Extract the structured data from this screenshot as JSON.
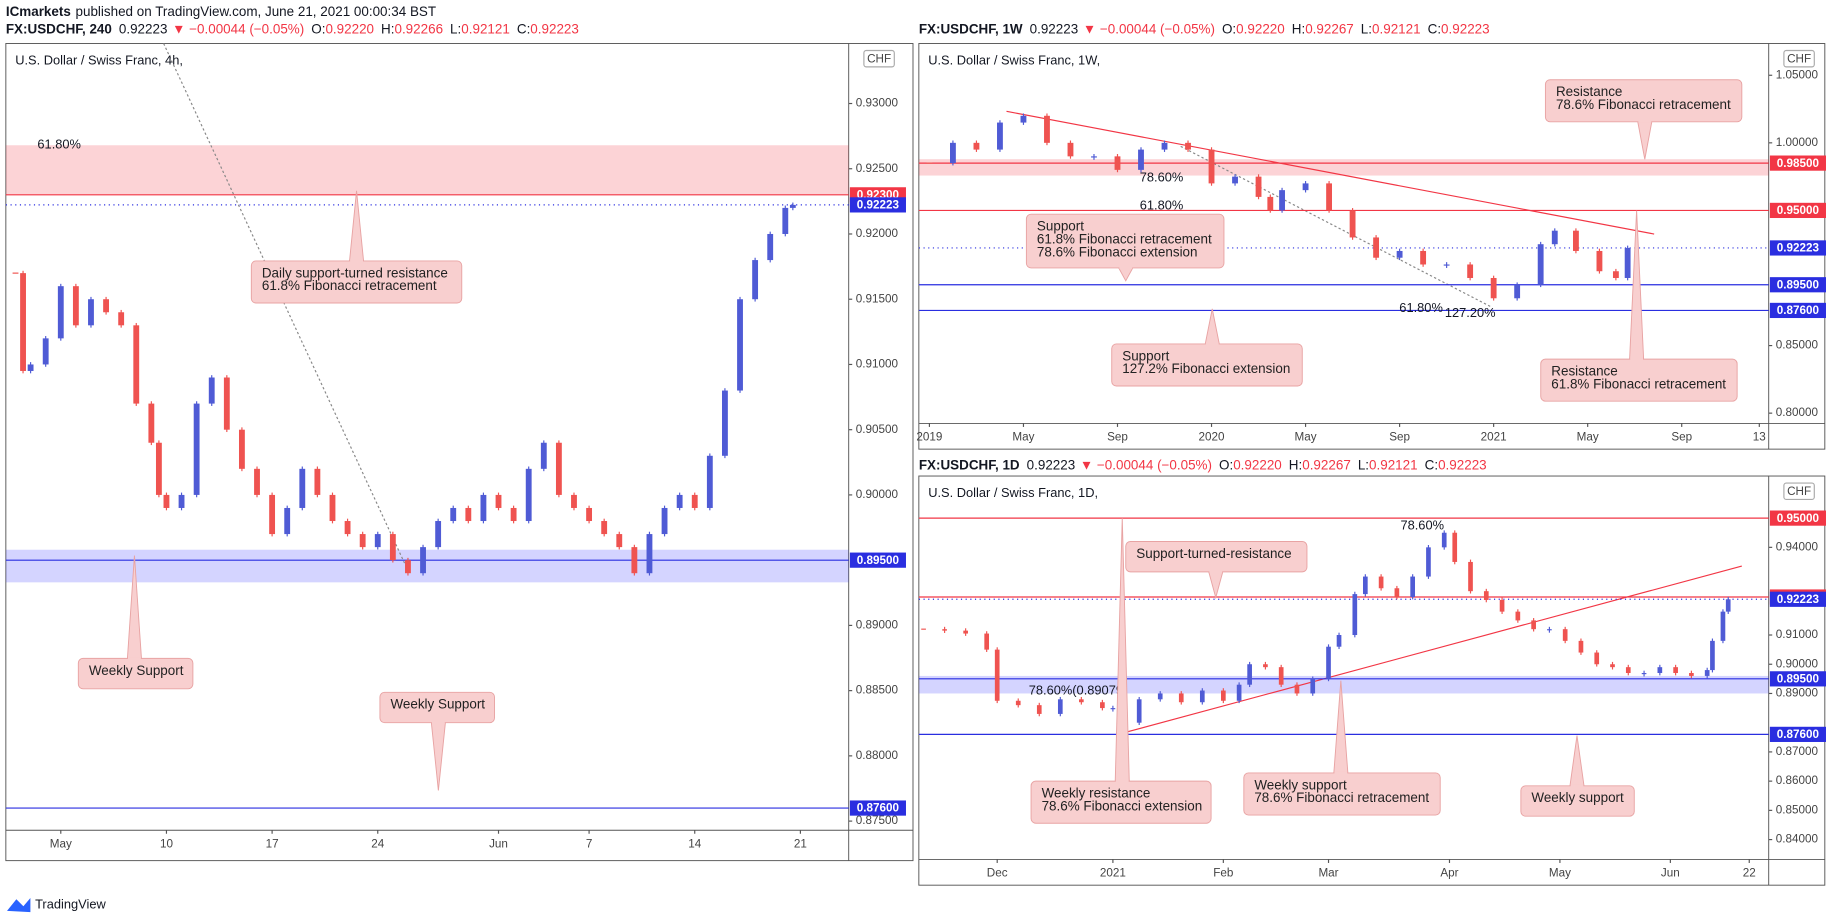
{
  "header": {
    "author": "ICmarkets",
    "text": "published on TradingView.com, June 21, 2021 00:00:34 BST"
  },
  "footer": {
    "brand": "TradingView"
  },
  "chart_data": [
    {
      "type": "candlestick",
      "symbol": "FX:USDCHF, 240",
      "last": "0.92223",
      "change": "▼ −0.00044 (−0.05%)",
      "ohlc": [
        [
          "O:",
          "0.92220"
        ],
        [
          "H:",
          "0.92266"
        ],
        [
          "L:",
          "0.92121"
        ],
        [
          "C:",
          "0.92223"
        ]
      ],
      "title": "U.S. Dollar / Swiss Franc, 4h,",
      "currency": "CHF",
      "x": [
        0,
        0.5,
        1,
        2,
        3,
        4,
        5,
        6,
        7,
        8,
        9,
        9.5,
        10,
        11,
        12,
        13,
        14,
        15,
        16,
        17,
        18,
        19,
        20,
        21,
        22,
        23,
        24,
        25,
        26,
        27,
        28,
        29,
        30,
        31,
        32,
        33,
        34,
        35,
        36,
        37,
        38,
        39,
        40,
        41,
        42,
        43,
        44,
        45,
        46,
        47,
        48,
        49,
        50,
        51,
        51.5
      ],
      "values": [
        0.917,
        0.9095,
        0.91,
        0.912,
        0.916,
        0.913,
        0.915,
        0.914,
        0.913,
        0.907,
        0.904,
        0.9,
        0.899,
        0.9,
        0.907,
        0.909,
        0.905,
        0.902,
        0.9,
        0.897,
        0.899,
        0.902,
        0.9,
        0.898,
        0.897,
        0.896,
        0.897,
        0.895,
        0.894,
        0.896,
        0.898,
        0.899,
        0.898,
        0.9,
        0.899,
        0.898,
        0.902,
        0.904,
        0.9,
        0.899,
        0.898,
        0.897,
        0.896,
        0.894,
        0.897,
        0.899,
        0.9,
        0.899,
        0.903,
        0.908,
        0.915,
        0.918,
        0.92,
        0.922,
        0.92223
      ],
      "xlim": [
        -0.64,
        55.2
      ],
      "xticks": [
        {
          "value": 3,
          "label": "May"
        },
        10,
        17,
        24,
        {
          "value": 32,
          "label": "Jun"
        },
        {
          "value": 38,
          "label": "7"
        },
        {
          "value": 45,
          "label": "14"
        },
        {
          "value": 52,
          "label": "21"
        }
      ],
      "ylim": [
        0.8743,
        0.9346
      ],
      "yticks": [
        {
          "value": 0.875,
          "label": "0.87500"
        },
        {
          "value": 0.88,
          "label": "0.88000"
        },
        {
          "value": 0.885,
          "label": "0.88500"
        },
        {
          "value": 0.89,
          "label": "0.89000"
        },
        {
          "value": 0.9,
          "label": "0.90000"
        },
        {
          "value": 0.905,
          "label": "0.90500"
        },
        {
          "value": 0.91,
          "label": "0.91000"
        },
        {
          "value": 0.915,
          "label": "0.91500"
        },
        {
          "value": 0.92,
          "label": "0.92000"
        },
        {
          "value": 0.925,
          "label": "0.92500"
        },
        {
          "value": 0.93,
          "label": "0.93000"
        }
      ],
      "zones": [
        {
          "range": [
            0.923,
            0.9268
          ],
          "color": "#f23645"
        },
        {
          "range": [
            0.8933,
            0.8958
          ],
          "color": "#3b3bff"
        }
      ],
      "levels": [
        {
          "value": 0.923,
          "label": "0.92300",
          "color": "#f23645"
        },
        {
          "value": 0.92223,
          "label": "0.92223",
          "color": "#2a2ee0",
          "dashed": true
        },
        {
          "value": 0.895,
          "label": "0.89500",
          "color": "#2a2ee0"
        },
        {
          "value": 0.876,
          "label": "0.87600",
          "color": "#2a2ee0"
        }
      ],
      "fib_labels": [
        "61.80%"
      ],
      "annotations": [
        [
          "Daily support-turned resistance",
          "61.8% Fibonacci retracement"
        ],
        [
          "Weekly Support"
        ],
        [
          "Weekly Support"
        ]
      ]
    },
    {
      "type": "candlestick",
      "symbol": "FX:USDCHF, 1W",
      "last": "0.92223",
      "change": "▼ −0.00044 (−0.05%)",
      "ohlc": [
        [
          "O:",
          "0.92220"
        ],
        [
          "H:",
          "0.92267"
        ],
        [
          "L:",
          "0.92121"
        ],
        [
          "C:",
          "0.92223"
        ]
      ],
      "title": "U.S. Dollar / Swiss Franc, 1W,",
      "currency": "CHF",
      "x": [
        0,
        1,
        2,
        3,
        4,
        5,
        6,
        7,
        8,
        9,
        10,
        11,
        12,
        13,
        14,
        14.5,
        15,
        16,
        17,
        18,
        19,
        20,
        21,
        22,
        23,
        24,
        25,
        26,
        26.6,
        27.5,
        28.5,
        29.2,
        29.7
      ],
      "values": [
        0.985,
        1.0,
        0.995,
        1.015,
        1.02,
        1.0,
        0.99,
        0.99,
        0.98,
        0.995,
        1.0,
        0.995,
        0.97,
        0.975,
        0.96,
        0.95,
        0.965,
        0.97,
        0.95,
        0.93,
        0.915,
        0.92,
        0.91,
        0.91,
        0.9,
        0.885,
        0.895,
        0.925,
        0.935,
        0.92,
        0.905,
        0.9,
        0.92223
      ],
      "xlim": [
        -0.45,
        35.7
      ],
      "xticks": [
        {
          "value": 0,
          "label": "2019"
        },
        {
          "value": 4,
          "label": "May"
        },
        {
          "value": 8,
          "label": "Sep"
        },
        {
          "value": 12,
          "label": "2020"
        },
        {
          "value": 16,
          "label": "May"
        },
        {
          "value": 20,
          "label": "Sep"
        },
        {
          "value": 24,
          "label": "2021"
        },
        {
          "value": 28,
          "label": "May"
        },
        {
          "value": 32,
          "label": "Sep"
        },
        {
          "value": 35.3,
          "label": "13"
        }
      ],
      "ylim": [
        0.7924,
        1.0735
      ],
      "yticks": [
        {
          "value": 0.8,
          "label": "0.80000"
        },
        {
          "value": 0.85,
          "label": "0.85000"
        },
        {
          "value": 1.0,
          "label": "1.00000"
        },
        {
          "value": 1.05,
          "label": "1.05000"
        }
      ],
      "zones": [
        {
          "range": [
            0.9758,
            0.9879
          ],
          "color": "#f23645"
        }
      ],
      "levels": [
        {
          "value": 0.985,
          "label": "0.98500",
          "color": "#f23645"
        },
        {
          "value": 0.95,
          "label": "0.95000",
          "color": "#f23645"
        },
        {
          "value": 0.92223,
          "label": "0.92223",
          "color": "#2a2ee0",
          "dashed": true
        },
        {
          "value": 0.895,
          "label": "0.89500",
          "color": "#2a2ee0"
        },
        {
          "value": 0.876,
          "label": "0.87600",
          "color": "#2a2ee0"
        }
      ],
      "fib_labels": [
        "78.60%",
        "61.80%",
        "61.80%",
        "127.20%"
      ],
      "annotations": [
        [
          "Resistance",
          "78.6% Fibonacci retracement"
        ],
        [
          "Support",
          "61.8% Fibonacci retracement",
          "78.6% Fibonacci extension"
        ],
        [
          "Support",
          "127.2% Fibonacci extension"
        ],
        [
          "Resistance",
          "61.8% Fibonacci retracement"
        ]
      ]
    },
    {
      "type": "candlestick",
      "symbol": "FX:USDCHF, 1D",
      "last": "0.92223",
      "change": "▼ −0.00044 (−0.05%)",
      "ohlc": [
        [
          "O:",
          "0.92220"
        ],
        [
          "H:",
          "0.92267"
        ],
        [
          "L:",
          "0.92121"
        ],
        [
          "C:",
          "0.92223"
        ]
      ],
      "title": "U.S. Dollar / Swiss Franc, 1D,",
      "currency": "CHF",
      "x": [
        -36,
        -32,
        -28,
        -24,
        -22,
        -18,
        -14,
        -10,
        -6,
        -2,
        0,
        2,
        5,
        9,
        13,
        17,
        21,
        24,
        26,
        29,
        32,
        35,
        38,
        41,
        43,
        46,
        48,
        51,
        54,
        57,
        60,
        63,
        65,
        68,
        71,
        74,
        77,
        80,
        83,
        86,
        89,
        92,
        95,
        98,
        101,
        104,
        107,
        110,
        113,
        114,
        116,
        117
      ],
      "values": [
        0.912,
        0.9115,
        0.9105,
        0.905,
        0.8875,
        0.886,
        0.883,
        0.888,
        0.887,
        0.885,
        0.885,
        0.88,
        0.888,
        0.89,
        0.887,
        0.891,
        0.8875,
        0.893,
        0.9,
        0.899,
        0.893,
        0.89,
        0.895,
        0.906,
        0.91,
        0.924,
        0.93,
        0.926,
        0.923,
        0.93,
        0.94,
        0.945,
        0.935,
        0.925,
        0.922,
        0.918,
        0.915,
        0.912,
        0.912,
        0.908,
        0.904,
        0.9,
        0.899,
        0.897,
        0.897,
        0.899,
        0.897,
        0.896,
        0.898,
        0.908,
        0.918,
        0.92223
      ],
      "xlim": [
        -36.9,
        124.7
      ],
      "xticks": [
        {
          "value": -22,
          "label": "Dec"
        },
        {
          "value": 0,
          "label": "2021"
        },
        {
          "value": 21,
          "label": "Feb"
        },
        {
          "value": 41,
          "label": "Mar"
        },
        {
          "value": 64,
          "label": "Apr"
        },
        {
          "value": 85,
          "label": "May"
        },
        {
          "value": 106,
          "label": "Jun"
        },
        {
          "value": 121,
          "label": "22"
        }
      ],
      "ylim": [
        0.8332,
        0.9644
      ],
      "yticks": [
        {
          "value": 0.84,
          "label": "0.84000"
        },
        {
          "value": 0.85,
          "label": "0.85000"
        },
        {
          "value": 0.86,
          "label": "0.86000"
        },
        {
          "value": 0.87,
          "label": "0.87000"
        },
        {
          "value": 0.89,
          "label": "0.89000"
        },
        {
          "value": 0.9,
          "label": "0.90000"
        },
        {
          "value": 0.91,
          "label": "0.91000"
        },
        {
          "value": 0.94,
          "label": "0.94000"
        }
      ],
      "zones": [
        {
          "range": [
            0.89,
            0.896
          ],
          "color": "#3b3bff"
        }
      ],
      "levels": [
        {
          "value": 0.95,
          "label": "0.95000",
          "color": "#f23645"
        },
        {
          "value": 0.923,
          "label": "0.92300",
          "color": "#f23645"
        },
        {
          "value": 0.92223,
          "label": "0.92223",
          "color": "#2a2ee0",
          "dashed": true
        },
        {
          "value": 0.895,
          "label": "0.89500",
          "color": "#2a2ee0"
        },
        {
          "value": 0.876,
          "label": "0.87600",
          "color": "#2a2ee0"
        }
      ],
      "fib_labels": [
        "78.60%",
        "78.60%(0.89079)"
      ],
      "annotations": [
        [
          "Support-turned-resistance"
        ],
        [
          "Weekly resistance",
          "78.6% Fibonacci extension"
        ],
        [
          "Weekly support",
          "78.6% Fibonacci retracement"
        ],
        [
          "Weekly support"
        ]
      ]
    }
  ]
}
